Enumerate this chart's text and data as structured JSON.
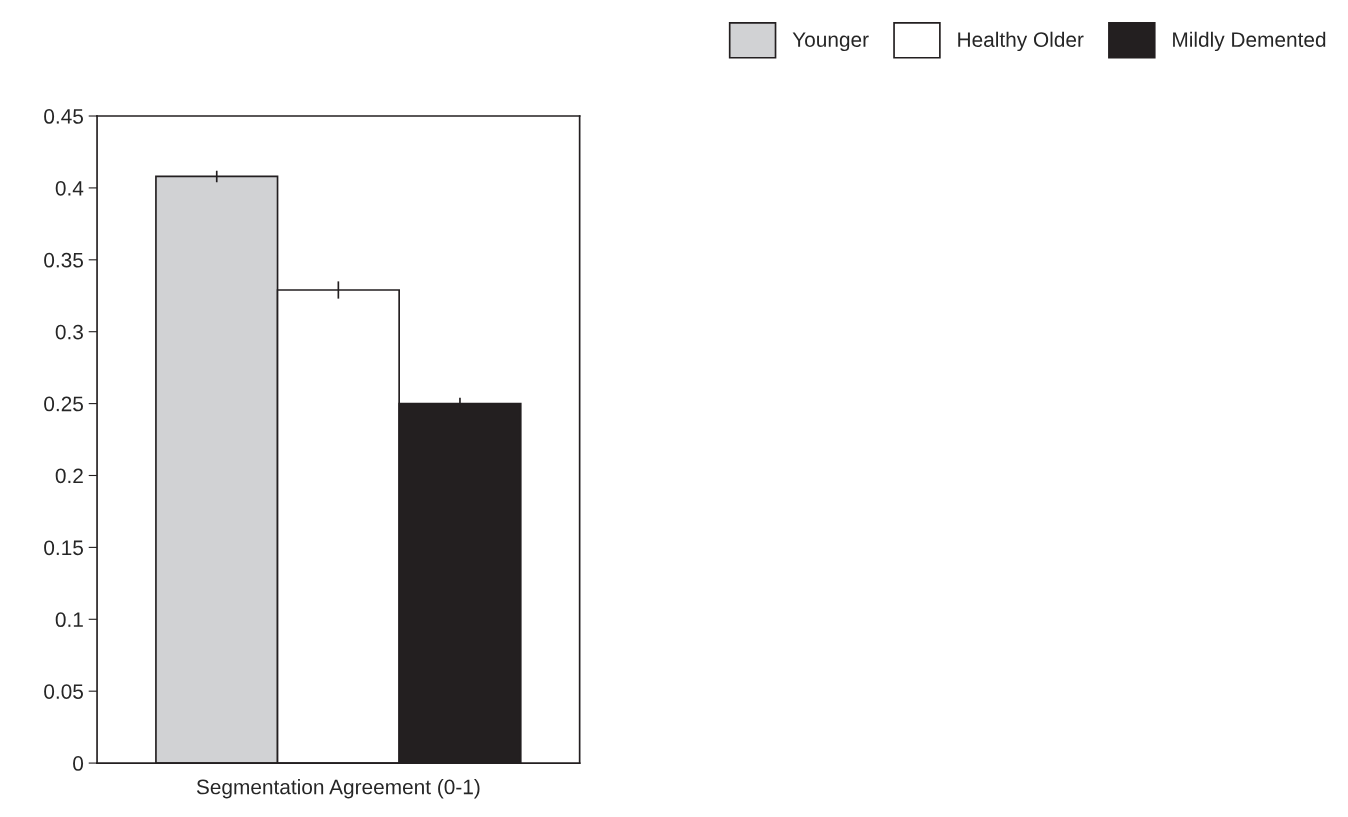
{
  "chart_data": {
    "type": "bar",
    "xlabel": "Segmentation Agreement (0-1)",
    "categories": [
      null
    ],
    "series": [
      {
        "name": "Younger",
        "color": "#d1d2d4",
        "values": [
          0.408
        ],
        "errors": [
          0.004
        ]
      },
      {
        "name": "Healthy Older",
        "color": "#ffffff",
        "values": [
          0.329
        ],
        "errors": [
          0.006
        ]
      },
      {
        "name": "Mildly Demented",
        "color": "#231f20",
        "values": [
          0.25
        ],
        "errors": [
          0.004
        ]
      }
    ],
    "ylim": [
      0,
      0.45
    ],
    "yticks": [
      0,
      0.05,
      0.1,
      0.15,
      0.2,
      0.25,
      0.3,
      0.35,
      0.4,
      0.45
    ],
    "grid": false,
    "legend": "top right"
  }
}
